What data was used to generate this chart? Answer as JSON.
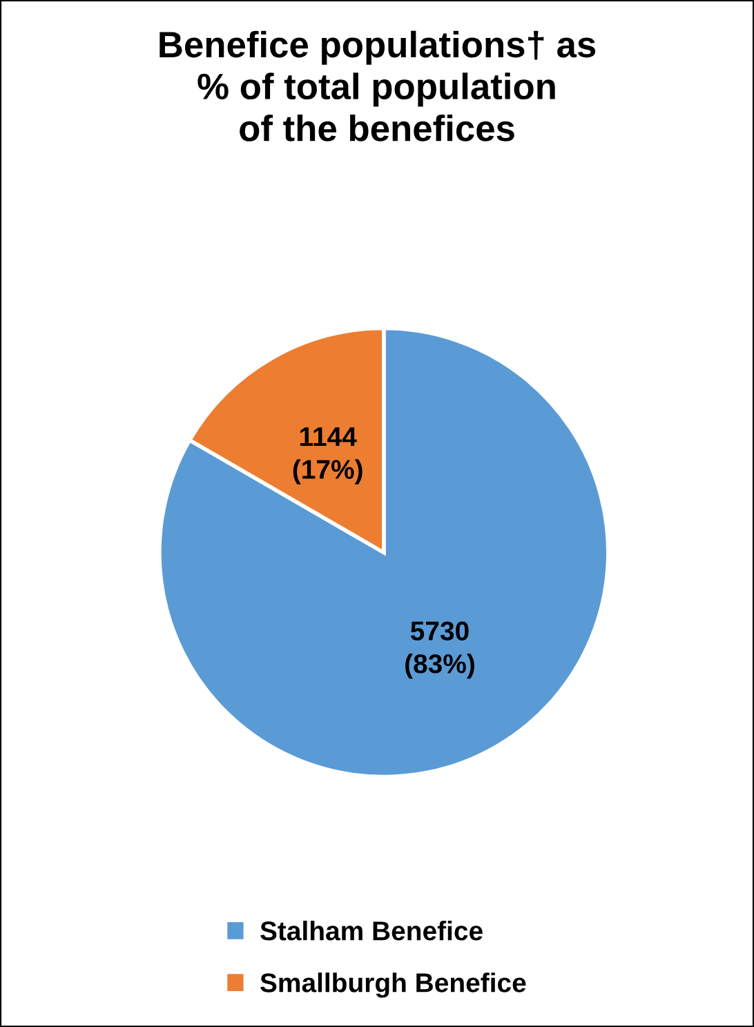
{
  "chart_data": {
    "type": "pie",
    "title": "Benefice populations† as\n% of total population\nof the benefices",
    "categories": [
      "Stalham Benefice",
      "Smallburgh Benefice"
    ],
    "values": [
      5730,
      1144
    ],
    "colors": [
      "#5b9bd5",
      "#ed7d31"
    ],
    "value_labels": [
      "5730\n(83%)",
      "1144\n(17%)"
    ],
    "legend": "bottom"
  }
}
